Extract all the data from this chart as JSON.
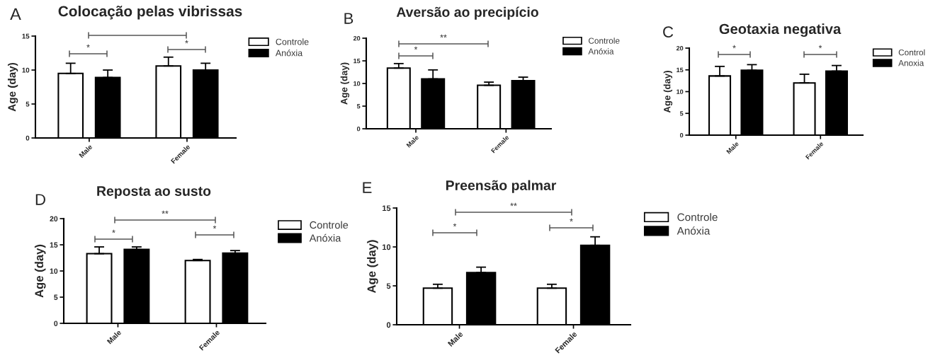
{
  "chart_data": [
    {
      "type": "bar",
      "title": "Colocação pelas vibrissas",
      "ylabel": "Age (day)",
      "categories": [
        "Male",
        "Female"
      ],
      "series": [
        {
          "name": "Controle",
          "color": "#ffffff",
          "values": [
            9.5,
            10.6
          ],
          "errors": [
            [
              9.5,
              11.0
            ],
            [
              10.6,
              11.9
            ]
          ]
        },
        {
          "name": "Anóxia",
          "color": "#000000",
          "values": [
            8.9,
            10.0
          ],
          "errors": [
            [
              8.9,
              10.0
            ],
            [
              10.0,
              11.0
            ]
          ]
        }
      ],
      "ylim": [
        0,
        15
      ],
      "yticks": [
        0,
        5,
        10,
        15
      ],
      "legend": "top right",
      "annotations": [
        "A",
        "*",
        "*"
      ]
    },
    {
      "type": "bar",
      "title": "Aversão ao precipício",
      "ylabel": "Age (day)",
      "categories": [
        "Male",
        "Female"
      ],
      "series": [
        {
          "name": "Controle",
          "color": "#ffffff",
          "values": [
            13.4,
            9.6
          ],
          "errors": [
            [
              13.4,
              14.4
            ],
            [
              9.6,
              10.3
            ]
          ]
        },
        {
          "name": "Anóxia",
          "color": "#000000",
          "values": [
            11.0,
            10.6
          ],
          "errors": [
            [
              11.0,
              13.0
            ],
            [
              10.6,
              11.4
            ]
          ]
        }
      ],
      "ylim": [
        0,
        20
      ],
      "yticks": [
        0,
        5,
        10,
        15,
        20
      ],
      "legend": "top right",
      "annotations": [
        "B",
        "**",
        "*"
      ]
    },
    {
      "type": "bar",
      "title": "Geotaxia negativa",
      "ylabel": "Age (day)",
      "categories": [
        "Male",
        "Female"
      ],
      "series": [
        {
          "name": "Control",
          "color": "#ffffff",
          "values": [
            13.6,
            12.0
          ],
          "errors": [
            [
              13.6,
              15.8
            ],
            [
              12.0,
              14.0
            ]
          ]
        },
        {
          "name": "Anoxia",
          "color": "#000000",
          "values": [
            14.9,
            14.7
          ],
          "errors": [
            [
              14.9,
              16.2
            ],
            [
              14.7,
              16.0
            ]
          ]
        }
      ],
      "ylim": [
        0,
        20
      ],
      "yticks": [
        0,
        5,
        10,
        15,
        20
      ],
      "legend": "top right",
      "annotations": [
        "C",
        "*",
        "*"
      ]
    },
    {
      "type": "bar",
      "title": "Reposta ao susto",
      "ylabel": "Age (day)",
      "categories": [
        "Male",
        "Female"
      ],
      "series": [
        {
          "name": "Controle",
          "color": "#ffffff",
          "values": [
            13.3,
            12.0
          ],
          "errors": [
            [
              13.3,
              14.6
            ],
            [
              12.0,
              12.2
            ]
          ]
        },
        {
          "name": "Anóxia",
          "color": "#000000",
          "values": [
            14.1,
            13.4
          ],
          "errors": [
            [
              14.1,
              14.6
            ],
            [
              13.4,
              13.9
            ]
          ]
        }
      ],
      "ylim": [
        0,
        20
      ],
      "yticks": [
        0,
        5,
        10,
        15,
        20
      ],
      "legend": "top right",
      "annotations": [
        "D",
        "**",
        "*",
        "*"
      ]
    },
    {
      "type": "bar",
      "title": "Preensão palmar",
      "ylabel": "Age (day)",
      "categories": [
        "Male",
        "Female"
      ],
      "series": [
        {
          "name": "Controle",
          "color": "#ffffff",
          "values": [
            4.7,
            4.7
          ],
          "errors": [
            [
              4.7,
              5.2
            ],
            [
              4.7,
              5.2
            ]
          ]
        },
        {
          "name": "Anóxia",
          "color": "#000000",
          "values": [
            6.7,
            10.2
          ],
          "errors": [
            [
              6.7,
              7.4
            ],
            [
              10.2,
              11.3
            ]
          ]
        }
      ],
      "ylim": [
        0,
        15
      ],
      "yticks": [
        0,
        5,
        10,
        15
      ],
      "legend": "top right",
      "annotations": [
        "E",
        "**",
        "*",
        "*"
      ]
    }
  ]
}
